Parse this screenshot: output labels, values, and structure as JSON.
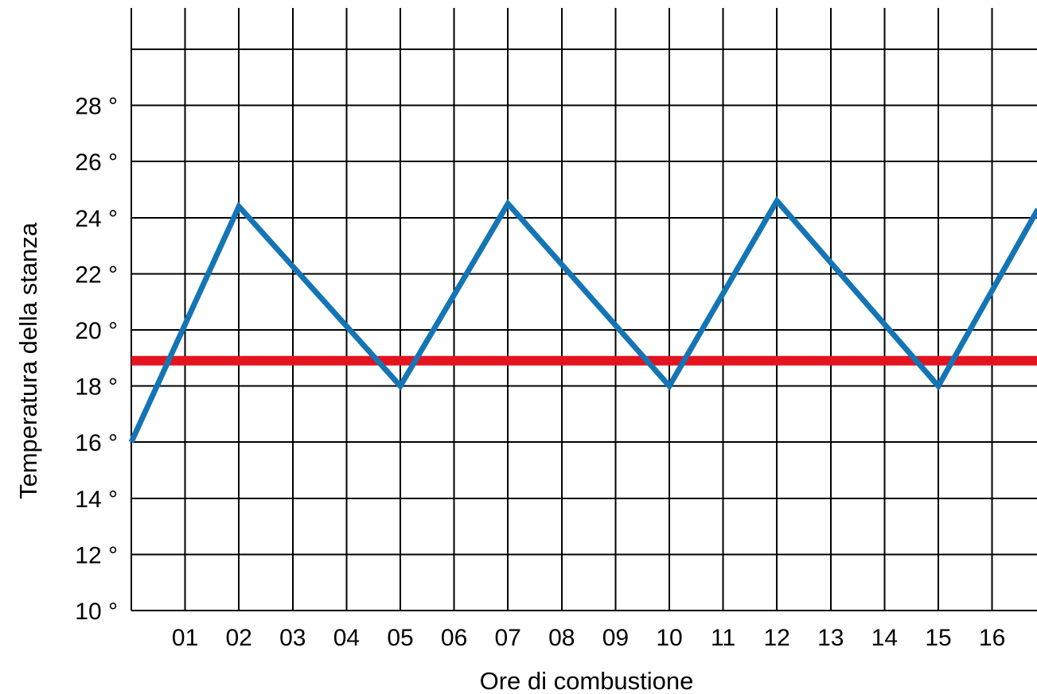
{
  "chart_data": {
    "type": "line",
    "title": "",
    "xlabel": "Ore di combustione",
    "ylabel": "Temperatura della stanza",
    "x_tick_labels": [
      "01",
      "02",
      "03",
      "04",
      "05",
      "06",
      "07",
      "08",
      "09",
      "10",
      "11",
      "12",
      "13",
      "14",
      "15",
      "16"
    ],
    "y_tick_labels": [
      "10 °",
      "12 °",
      "14 °",
      "16 °",
      "18 °",
      "20 °",
      "22 °",
      "24 °",
      "26 °",
      "28 °"
    ],
    "y_ticks": [
      10,
      12,
      14,
      16,
      18,
      20,
      22,
      24,
      26,
      28
    ],
    "xlim": [
      0,
      16.85
    ],
    "ylim": [
      10,
      31
    ],
    "grid": true,
    "series": [
      {
        "color": "#1475b5",
        "x": [
          0,
          2,
          5,
          7,
          10,
          12,
          15,
          16.85
        ],
        "y": [
          16,
          24.4,
          18,
          24.5,
          18,
          24.6,
          18,
          24.3
        ]
      },
      {
        "color": "#e3131f",
        "x": [
          0,
          16.85
        ],
        "y": [
          18.9,
          18.9
        ]
      }
    ]
  }
}
